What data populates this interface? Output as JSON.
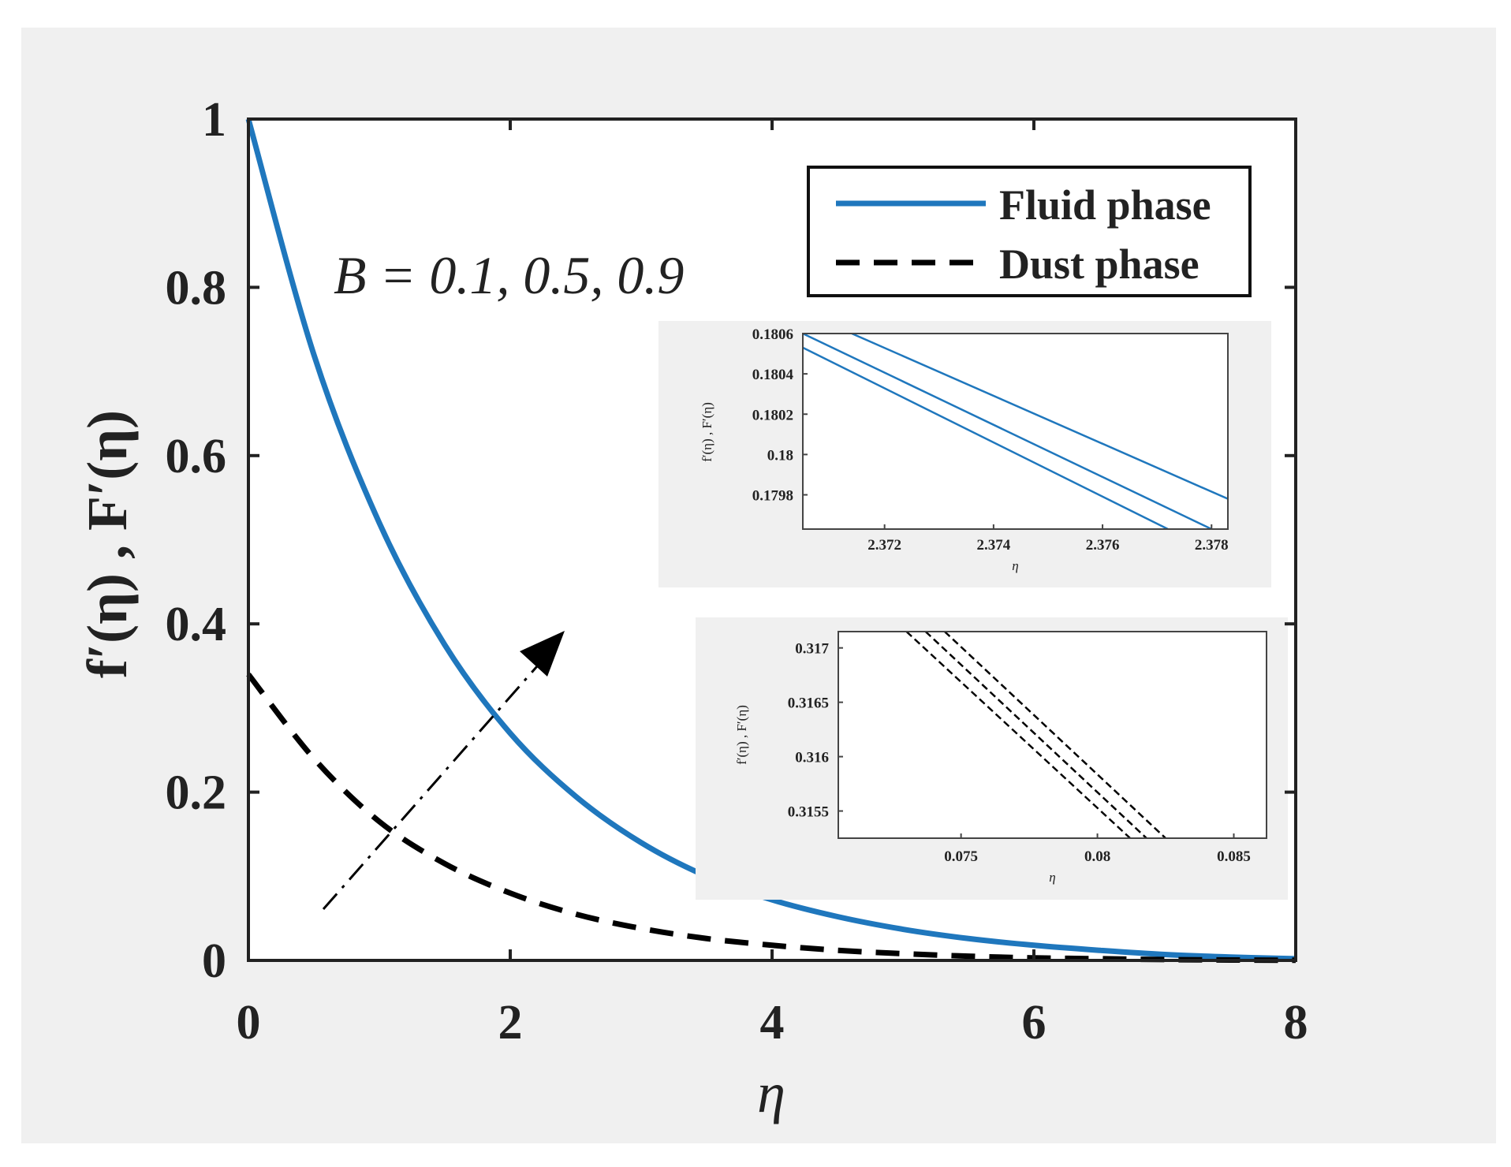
{
  "chart_data": [
    {
      "type": "line",
      "name": "main",
      "xlabel": "η",
      "ylabel": "f′(η) , F′(η)",
      "xlim": [
        0,
        8
      ],
      "ylim": [
        0,
        1
      ],
      "xticks": [
        "0",
        "2",
        "4",
        "6",
        "8"
      ],
      "yticks": [
        "0",
        "0.2",
        "0.4",
        "0.6",
        "0.8",
        "1"
      ],
      "legend_position": "top-right",
      "annotation": "B = 0.1, 0.5, 0.9",
      "grid": false,
      "colors": {
        "fluid": "#1f77bd",
        "dust": "#000000",
        "background": "#f0f0f0"
      },
      "series": [
        {
          "name": "Fluid phase",
          "style": "solid",
          "x": [
            0,
            0.5,
            1,
            1.5,
            2,
            2.5,
            3,
            3.5,
            4,
            4.5,
            5,
            5.5,
            6,
            6.5,
            7,
            7.5,
            8
          ],
          "y": [
            1.0,
            0.72,
            0.52,
            0.375,
            0.27,
            0.195,
            0.14,
            0.1,
            0.072,
            0.052,
            0.037,
            0.026,
            0.018,
            0.012,
            0.007,
            0.004,
            0.002
          ]
        },
        {
          "name": "Dust phase",
          "style": "dashed",
          "x": [
            0,
            0.5,
            1,
            1.5,
            2,
            2.5,
            3,
            3.5,
            4,
            4.5,
            5,
            5.5,
            6,
            6.5,
            7,
            7.5,
            8
          ],
          "y": [
            0.34,
            0.24,
            0.165,
            0.115,
            0.08,
            0.055,
            0.038,
            0.026,
            0.018,
            0.012,
            0.008,
            0.005,
            0.003,
            0.002,
            0.001,
            0.0005,
            0.0002
          ]
        }
      ]
    },
    {
      "type": "line",
      "name": "inset-top",
      "xlabel": "η",
      "ylabel": "f′(η) , F′(η)",
      "xlim": [
        2.3705,
        2.3783
      ],
      "ylim": [
        0.17963,
        0.1806
      ],
      "xticks": [
        "2.372",
        "2.374",
        "2.376",
        "2.378"
      ],
      "yticks": [
        "0.1798",
        "0.18",
        "0.1802",
        "0.1804",
        "0.1806"
      ],
      "series": [
        {
          "style": "solid",
          "x": [
            2.3705,
            2.3772
          ],
          "y": [
            0.18053,
            0.17963
          ]
        },
        {
          "style": "solid",
          "x": [
            2.3705,
            2.378
          ],
          "y": [
            0.1806,
            0.17963
          ]
        },
        {
          "style": "solid",
          "x": [
            2.3714,
            2.3783
          ],
          "y": [
            0.1806,
            0.17978
          ]
        }
      ]
    },
    {
      "type": "line",
      "name": "inset-bottom",
      "xlabel": "η",
      "ylabel": "f′(η) , F′(η)",
      "xlim": [
        0.0705,
        0.0862
      ],
      "ylim": [
        0.31525,
        0.31715
      ],
      "xticks": [
        "0.075",
        "0.08",
        "0.085"
      ],
      "yticks": [
        "0.3155",
        "0.316",
        "0.3165",
        "0.317"
      ],
      "series": [
        {
          "style": "dashed",
          "x": [
            0.073,
            0.0812
          ],
          "y": [
            0.31715,
            0.31525
          ]
        },
        {
          "style": "dashed",
          "x": [
            0.0737,
            0.0818
          ],
          "y": [
            0.31715,
            0.31525
          ]
        },
        {
          "style": "dashed",
          "x": [
            0.0744,
            0.0825
          ],
          "y": [
            0.31715,
            0.31525
          ]
        }
      ]
    }
  ]
}
